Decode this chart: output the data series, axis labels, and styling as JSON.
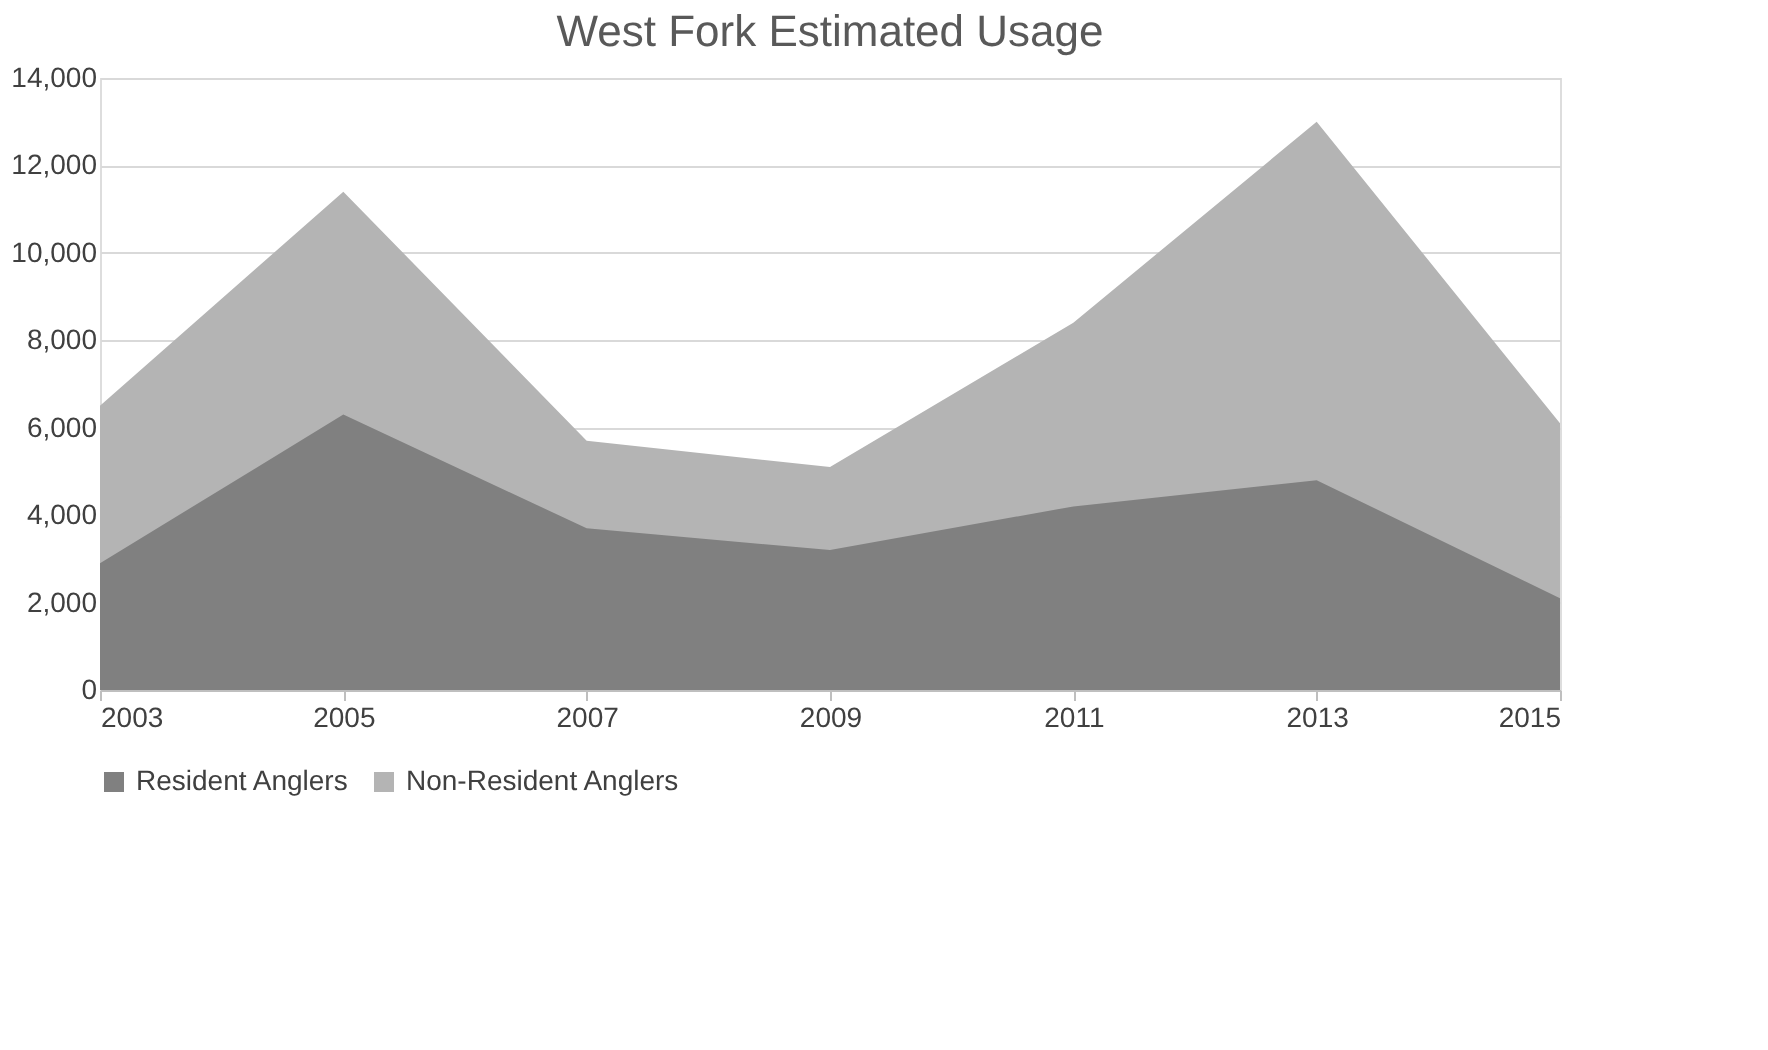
{
  "chart_data": {
    "type": "area",
    "title": "West Fork Estimated Usage",
    "x": [
      2003,
      2005,
      2007,
      2009,
      2011,
      2013,
      2015
    ],
    "series": [
      {
        "name": "Resident Anglers",
        "color": "#808080",
        "values": [
          2900,
          6300,
          3700,
          3200,
          4200,
          4800,
          2100
        ]
      },
      {
        "name": "Non-Resident Anglers",
        "color": "#b4b4b4",
        "values": [
          6500,
          11400,
          5700,
          5100,
          8400,
          13000,
          6100
        ]
      }
    ],
    "xlim": [
      2003,
      2015
    ],
    "xticks": [
      2003,
      2005,
      2007,
      2009,
      2011,
      2013,
      2015
    ],
    "ylim": [
      0,
      14000
    ],
    "yticks": [
      {
        "value": 0,
        "label": "0"
      },
      {
        "value": 2000,
        "label": "2,000"
      },
      {
        "value": 4000,
        "label": "4,000"
      },
      {
        "value": 6000,
        "label": "6,000"
      },
      {
        "value": 8000,
        "label": "8,000"
      },
      {
        "value": 10000,
        "label": "10,000"
      },
      {
        "value": 12000,
        "label": "12,000"
      },
      {
        "value": 14000,
        "label": "14,000"
      }
    ],
    "grid": "y",
    "legend": "bottom"
  }
}
